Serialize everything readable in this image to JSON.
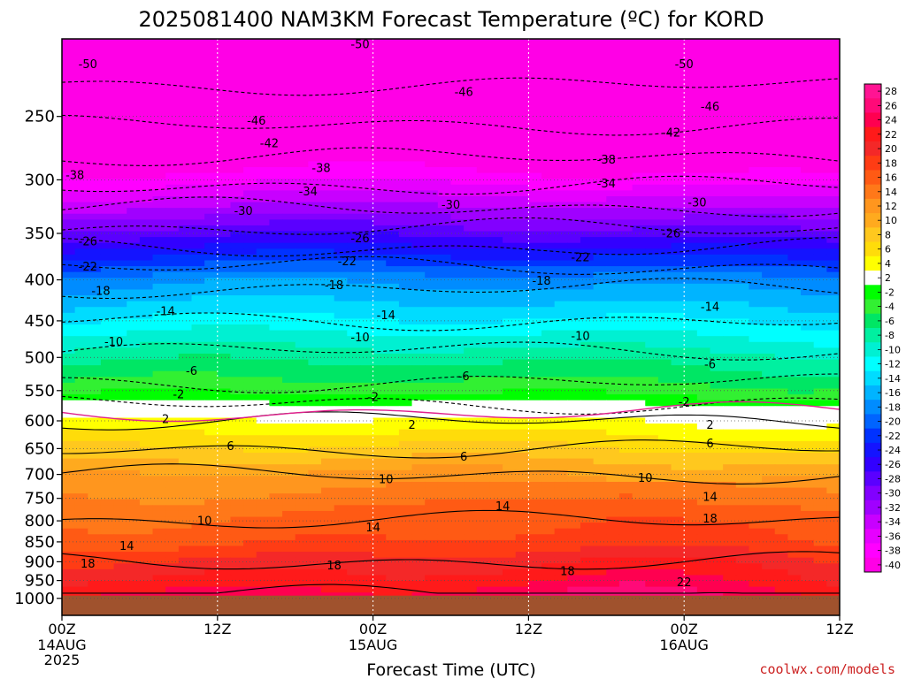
{
  "chart_data": {
    "type": "heatmap",
    "title": "2025081400 NAM3KM Forecast Temperature (ºC) for KORD",
    "xlabel": "Forecast Time (UTC)",
    "ylabel": "",
    "credit": "coolwx.com/models",
    "x_axis": {
      "unit": "forecast hour",
      "range": [
        0,
        60
      ],
      "ticks": [
        {
          "hour": 0,
          "label": "00Z",
          "sub": "14AUG",
          "sub2": "2025"
        },
        {
          "hour": 12,
          "label": "12Z",
          "sub": "",
          "sub2": ""
        },
        {
          "hour": 24,
          "label": "00Z",
          "sub": "15AUG",
          "sub2": ""
        },
        {
          "hour": 36,
          "label": "12Z",
          "sub": "",
          "sub2": ""
        },
        {
          "hour": 48,
          "label": "00Z",
          "sub": "16AUG",
          "sub2": ""
        },
        {
          "hour": 60,
          "label": "12Z",
          "sub": "",
          "sub2": ""
        }
      ]
    },
    "y_axis": {
      "unit": "hPa",
      "range": [
        1050,
        200
      ],
      "scale": "log",
      "ticks": [
        250,
        300,
        350,
        400,
        450,
        500,
        550,
        600,
        650,
        700,
        750,
        800,
        850,
        900,
        950,
        1000
      ]
    },
    "ground_level_hPa": 992,
    "colorbar": {
      "labels": [
        "28",
        "26",
        "24",
        "22",
        "20",
        "18",
        "16",
        "14",
        "12",
        "10",
        "8",
        "6",
        "4",
        "2",
        "-2",
        "-4",
        "-6",
        "-8",
        "-10",
        "-12",
        "-14",
        "-16",
        "-18",
        "-20",
        "-22",
        "-24",
        "-26",
        "-28",
        "-30",
        "-32",
        "-34",
        "-36",
        "-38",
        "-40"
      ],
      "colors": [
        "#ff1493",
        "#ff0a78",
        "#ff0050",
        "#ff1a1a",
        "#f42828",
        "#ff3c14",
        "#ff5a14",
        "#ff7819",
        "#ff961e",
        "#ffaa1e",
        "#ffc81e",
        "#ffdc0a",
        "#ffff00",
        "#ffffff",
        "#00ff00",
        "#32f032",
        "#00e664",
        "#00f0a0",
        "#00f0d2",
        "#00ffff",
        "#00dcff",
        "#00b4ff",
        "#008cff",
        "#0064ff",
        "#0032ff",
        "#1414ff",
        "#3200ff",
        "#5a00ff",
        "#8200ff",
        "#a000ff",
        "#c800ff",
        "#e600ff",
        "#ff00ff",
        "#ff00e6"
      ]
    },
    "levels_hPa": [
      200,
      250,
      300,
      350,
      400,
      450,
      500,
      550,
      600,
      650,
      700,
      750,
      800,
      850,
      900,
      950,
      990
    ],
    "temperature_profile_C": [
      -54,
      -47,
      -39,
      -29,
      -19,
      -14,
      -9,
      -5,
      2,
      6,
      10,
      12,
      14,
      15,
      18,
      20,
      22
    ],
    "contour_labels": [
      {
        "hour": 2,
        "p": 215,
        "value": "-50"
      },
      {
        "hour": 23,
        "p": 203,
        "value": "-50"
      },
      {
        "hour": 48,
        "p": 215,
        "value": "-50"
      },
      {
        "hour": 31,
        "p": 233,
        "value": "-46"
      },
      {
        "hour": 50,
        "p": 243,
        "value": "-46"
      },
      {
        "hour": 15,
        "p": 253,
        "value": "-46"
      },
      {
        "hour": 16,
        "p": 270,
        "value": "-42"
      },
      {
        "hour": 47,
        "p": 262,
        "value": "-42"
      },
      {
        "hour": 1,
        "p": 296,
        "value": "-38"
      },
      {
        "hour": 20,
        "p": 290,
        "value": "-38"
      },
      {
        "hour": 42,
        "p": 283,
        "value": "-38"
      },
      {
        "hour": 19,
        "p": 310,
        "value": "-34"
      },
      {
        "hour": 42,
        "p": 303,
        "value": "-34"
      },
      {
        "hour": 14,
        "p": 328,
        "value": "-30"
      },
      {
        "hour": 30,
        "p": 322,
        "value": "-30"
      },
      {
        "hour": 49,
        "p": 320,
        "value": "-30"
      },
      {
        "hour": 2,
        "p": 358,
        "value": "-26"
      },
      {
        "hour": 23,
        "p": 355,
        "value": "-26"
      },
      {
        "hour": 47,
        "p": 350,
        "value": "-26"
      },
      {
        "hour": 2,
        "p": 385,
        "value": "-22"
      },
      {
        "hour": 22,
        "p": 379,
        "value": "-22"
      },
      {
        "hour": 40,
        "p": 375,
        "value": "-22"
      },
      {
        "hour": 3,
        "p": 413,
        "value": "-18"
      },
      {
        "hour": 21,
        "p": 406,
        "value": "-18"
      },
      {
        "hour": 37,
        "p": 401,
        "value": "-18"
      },
      {
        "hour": 8,
        "p": 438,
        "value": "-14"
      },
      {
        "hour": 25,
        "p": 443,
        "value": "-14"
      },
      {
        "hour": 50,
        "p": 432,
        "value": "-14"
      },
      {
        "hour": 4,
        "p": 478,
        "value": "-10"
      },
      {
        "hour": 23,
        "p": 472,
        "value": "-10"
      },
      {
        "hour": 40,
        "p": 470,
        "value": "-10"
      },
      {
        "hour": 10,
        "p": 520,
        "value": "-6"
      },
      {
        "hour": 31,
        "p": 528,
        "value": "-6"
      },
      {
        "hour": 50,
        "p": 510,
        "value": "-6"
      },
      {
        "hour": 9,
        "p": 556,
        "value": "-2"
      },
      {
        "hour": 24,
        "p": 560,
        "value": "-2"
      },
      {
        "hour": 48,
        "p": 568,
        "value": "-2"
      },
      {
        "hour": 8,
        "p": 597,
        "value": "2"
      },
      {
        "hour": 27,
        "p": 607,
        "value": "2"
      },
      {
        "hour": 50,
        "p": 607,
        "value": "2"
      },
      {
        "hour": 13,
        "p": 645,
        "value": "6"
      },
      {
        "hour": 31,
        "p": 665,
        "value": "6"
      },
      {
        "hour": 50,
        "p": 640,
        "value": "6"
      },
      {
        "hour": 25,
        "p": 710,
        "value": "10"
      },
      {
        "hour": 45,
        "p": 707,
        "value": "10"
      },
      {
        "hour": 11,
        "p": 800,
        "value": "10"
      },
      {
        "hour": 34,
        "p": 767,
        "value": "14"
      },
      {
        "hour": 50,
        "p": 747,
        "value": "14"
      },
      {
        "hour": 24,
        "p": 815,
        "value": "14"
      },
      {
        "hour": 5,
        "p": 860,
        "value": "14"
      },
      {
        "hour": 50,
        "p": 795,
        "value": "18"
      },
      {
        "hour": 2,
        "p": 905,
        "value": "18"
      },
      {
        "hour": 21,
        "p": 910,
        "value": "18"
      },
      {
        "hour": 39,
        "p": 925,
        "value": "18"
      },
      {
        "hour": 48,
        "p": 955,
        "value": "22"
      }
    ]
  }
}
